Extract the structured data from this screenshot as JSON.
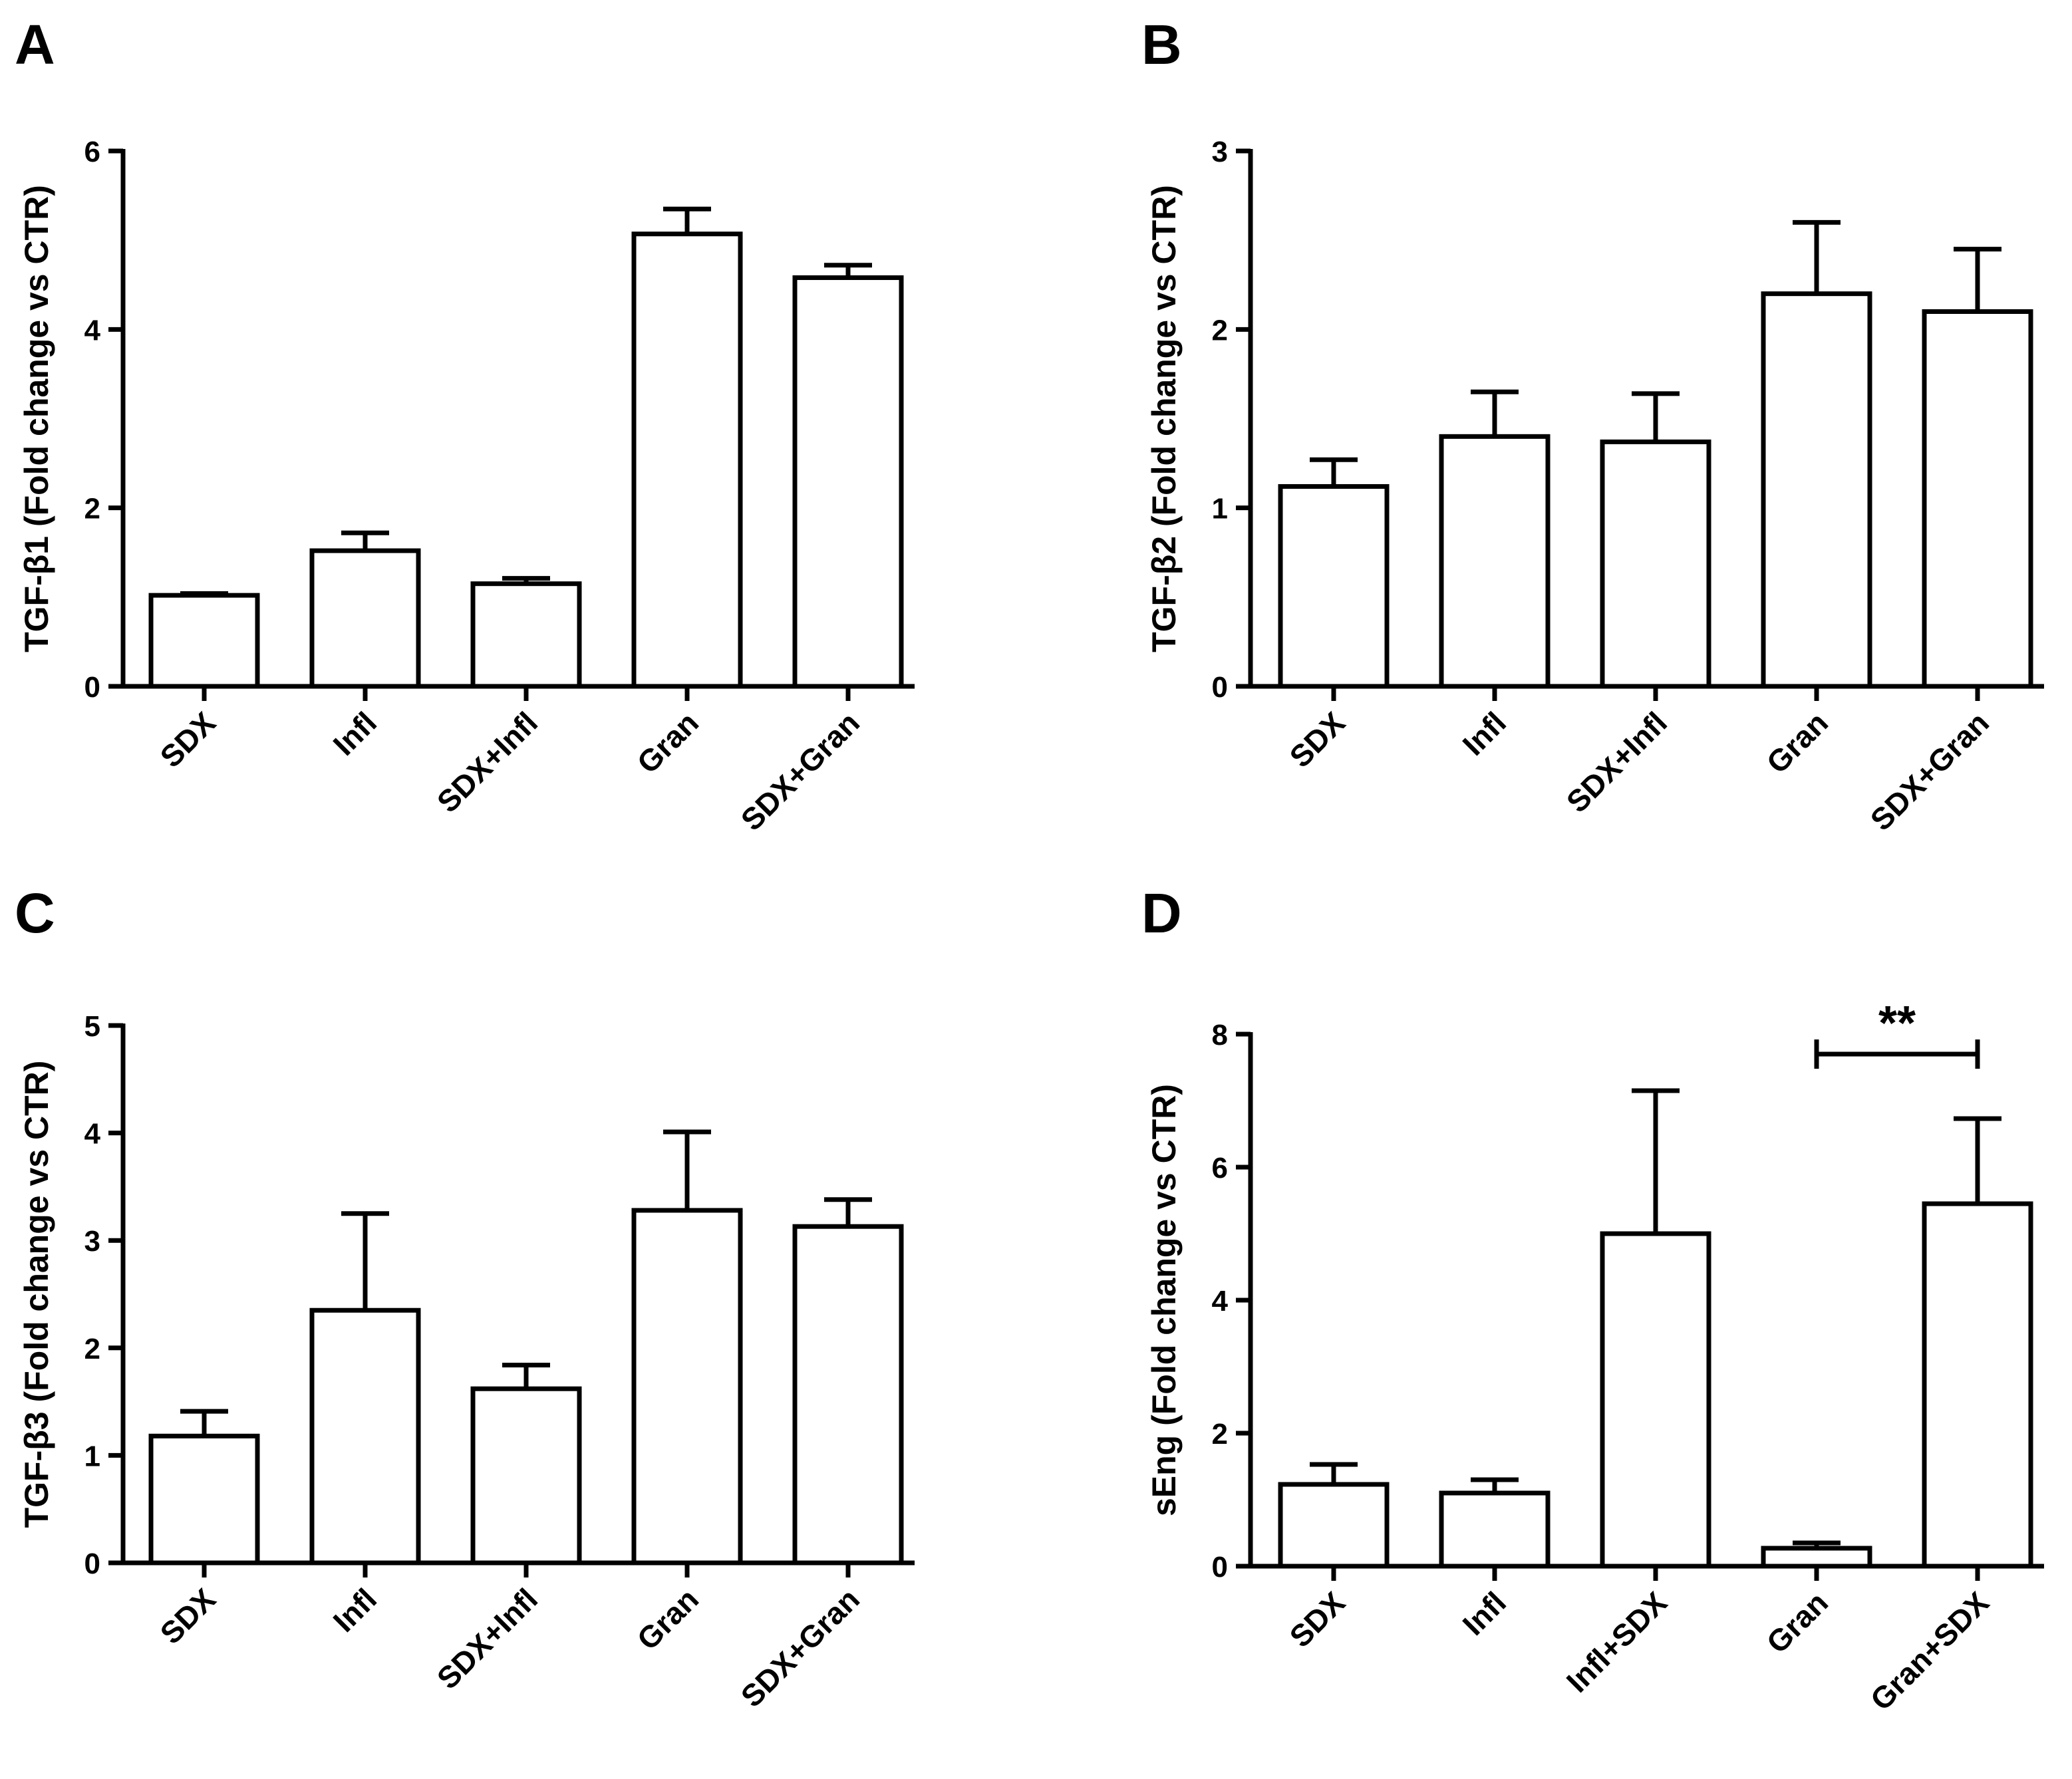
{
  "chart_data": [
    {
      "type": "bar",
      "panel": "A",
      "ylabel": "TGF-β1 (Fold change vs CTR)",
      "ylim": [
        0,
        6
      ],
      "yticks": [
        0,
        2,
        4,
        6
      ],
      "categories": [
        "SDX",
        "Infl",
        "SDX+Infl",
        "Gran",
        "SDX+Gran"
      ],
      "values": [
        1.02,
        1.52,
        1.15,
        5.07,
        4.58
      ],
      "errors": [
        0.02,
        0.2,
        0.06,
        0.28,
        0.14
      ]
    },
    {
      "type": "bar",
      "panel": "B",
      "ylabel": "TGF-β2 (Fold change vs CTR)",
      "ylim": [
        0,
        3
      ],
      "yticks": [
        0,
        1,
        2,
        3
      ],
      "categories": [
        "SDX",
        "Infl",
        "SDX+Infl",
        "Gran",
        "SDX+Gran"
      ],
      "values": [
        1.12,
        1.4,
        1.37,
        2.2,
        2.1
      ],
      "errors": [
        0.15,
        0.25,
        0.27,
        0.4,
        0.35
      ]
    },
    {
      "type": "bar",
      "panel": "C",
      "ylabel": "TGF-β3 (Fold change vs CTR)",
      "ylim": [
        0,
        5
      ],
      "yticks": [
        0,
        1,
        2,
        3,
        4,
        5
      ],
      "categories": [
        "SDX",
        "Infl",
        "SDX+Infl",
        "Gran",
        "SDX+Gran"
      ],
      "values": [
        1.18,
        2.35,
        1.62,
        3.28,
        3.13
      ],
      "errors": [
        0.23,
        0.9,
        0.22,
        0.73,
        0.25
      ]
    },
    {
      "type": "bar",
      "panel": "D",
      "ylabel": "sEng (Fold change vs CTR)",
      "ylim": [
        0,
        8
      ],
      "yticks": [
        0,
        2,
        4,
        6,
        8
      ],
      "categories": [
        "SDX",
        "Infl",
        "Infl+SDX",
        "Gran",
        "Gran+SDX"
      ],
      "values": [
        1.23,
        1.1,
        5.0,
        0.27,
        5.45
      ],
      "errors": [
        0.3,
        0.2,
        2.15,
        0.08,
        1.28
      ],
      "annotation": {
        "text": "**",
        "from": "Gran",
        "to": "Gran+SDX"
      }
    }
  ]
}
